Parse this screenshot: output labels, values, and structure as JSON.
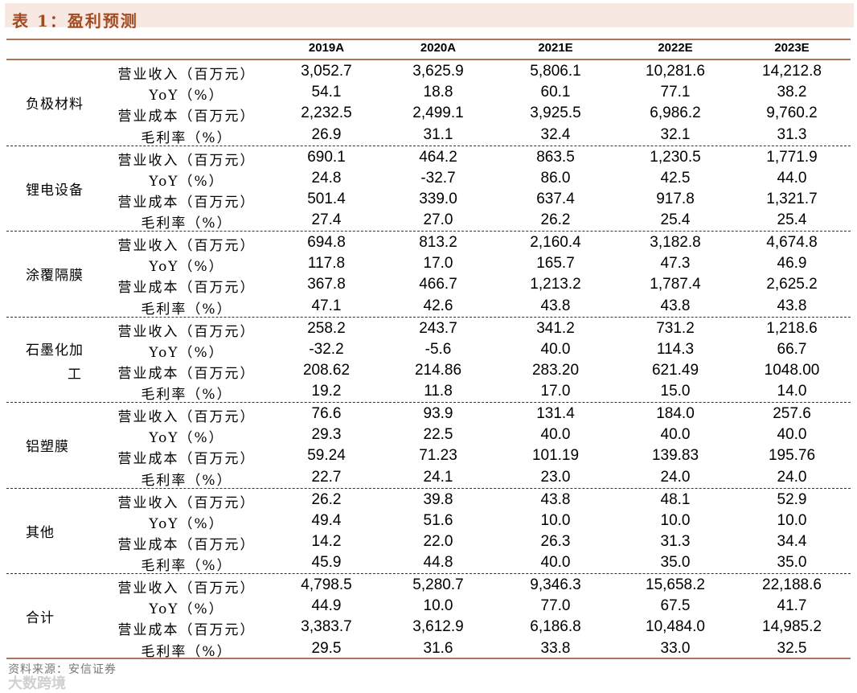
{
  "title": "表 1：盈利预测",
  "columns": [
    "2019A",
    "2020A",
    "2021E",
    "2022E",
    "2023E"
  ],
  "metric_labels": [
    "营业收入（百万元）",
    "YoY（%）",
    "营业成本（百万元）",
    "毛利率（%）"
  ],
  "segments": [
    {
      "name_lines": [
        "负极材料"
      ],
      "rows": [
        [
          "3,052.7",
          "3,625.9",
          "5,806.1",
          "10,281.6",
          "14,212.8"
        ],
        [
          "54.1",
          "18.8",
          "60.1",
          "77.1",
          "38.2"
        ],
        [
          "2,232.5",
          "2,499.1",
          "3,925.5",
          "6,986.2",
          "9,760.2"
        ],
        [
          "26.9",
          "31.1",
          "32.4",
          "32.1",
          "31.3"
        ]
      ]
    },
    {
      "name_lines": [
        "锂电设备"
      ],
      "rows": [
        [
          "690.1",
          "464.2",
          "863.5",
          "1,230.5",
          "1,771.9"
        ],
        [
          "24.8",
          "-32.7",
          "86.0",
          "42.5",
          "44.0"
        ],
        [
          "501.4",
          "339.0",
          "637.4",
          "917.8",
          "1,321.7"
        ],
        [
          "27.4",
          "27.0",
          "26.2",
          "25.4",
          "25.4"
        ]
      ]
    },
    {
      "name_lines": [
        "涂覆隔膜"
      ],
      "rows": [
        [
          "694.8",
          "813.2",
          "2,160.4",
          "3,182.8",
          "4,674.8"
        ],
        [
          "117.8",
          "17.0",
          "165.7",
          "47.3",
          "46.9"
        ],
        [
          "367.8",
          "466.7",
          "1,213.2",
          "1,787.4",
          "2,625.2"
        ],
        [
          "47.1",
          "42.6",
          "43.8",
          "43.8",
          "43.8"
        ]
      ]
    },
    {
      "name_lines": [
        "石墨化加",
        "工"
      ],
      "rows": [
        [
          "258.2",
          "243.7",
          "341.2",
          "731.2",
          "1,218.6"
        ],
        [
          "-32.2",
          "-5.6",
          "40.0",
          "114.3",
          "66.7"
        ],
        [
          "208.62",
          "214.86",
          "283.20",
          "621.49",
          "1048.00"
        ],
        [
          "19.2",
          "11.8",
          "17.0",
          "15.0",
          "14.0"
        ]
      ]
    },
    {
      "name_lines": [
        "铝塑膜"
      ],
      "rows": [
        [
          "76.6",
          "93.9",
          "131.4",
          "184.0",
          "257.6"
        ],
        [
          "29.3",
          "22.5",
          "40.0",
          "40.0",
          "40.0"
        ],
        [
          "59.24",
          "71.23",
          "101.19",
          "139.83",
          "195.76"
        ],
        [
          "22.7",
          "24.1",
          "23.0",
          "24.0",
          "24.0"
        ]
      ]
    },
    {
      "name_lines": [
        "其他"
      ],
      "rows": [
        [
          "26.2",
          "39.8",
          "43.8",
          "48.1",
          "52.9"
        ],
        [
          "49.4",
          "51.6",
          "10.0",
          "10.0",
          "10.0"
        ],
        [
          "14.2",
          "22.0",
          "26.3",
          "31.3",
          "34.4"
        ],
        [
          "45.9",
          "44.8",
          "40.0",
          "35.0",
          "35.0"
        ]
      ]
    },
    {
      "name_lines": [
        "合计"
      ],
      "rows": [
        [
          "4,798.5",
          "5,280.7",
          "9,346.3",
          "15,658.2",
          "22,188.6"
        ],
        [
          "44.9",
          "10.0",
          "77.0",
          "67.5",
          "41.7"
        ],
        [
          "3,383.7",
          "3,612.9",
          "6,186.8",
          "10,484.0",
          "14,985.2"
        ],
        [
          "29.5",
          "31.6",
          "33.8",
          "33.0",
          "32.5"
        ]
      ]
    }
  ],
  "footer": "资料来源：安信证券",
  "watermark": "大数跨境"
}
